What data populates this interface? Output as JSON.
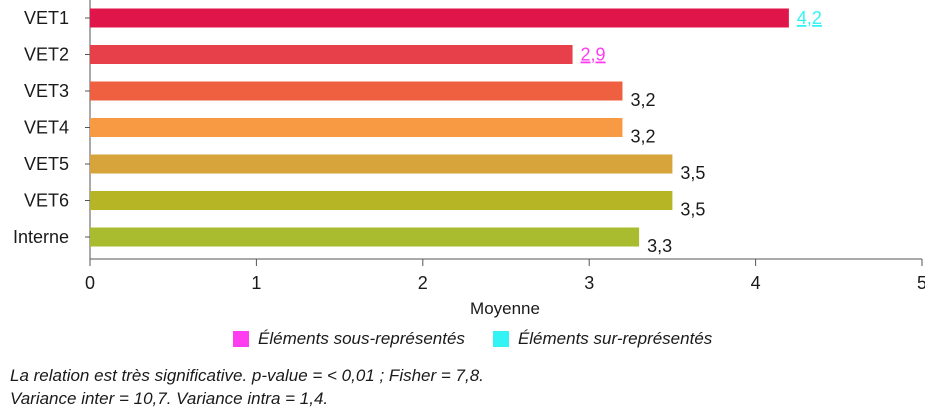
{
  "chart_data": {
    "type": "bar",
    "orientation": "horizontal",
    "categories": [
      "VET1",
      "VET2",
      "VET3",
      "VET4",
      "VET5",
      "VET6",
      "Interne"
    ],
    "values": [
      4.2,
      2.9,
      3.2,
      3.2,
      3.5,
      3.5,
      3.3
    ],
    "value_labels": [
      "4,2",
      "2,9",
      "3,2",
      "3,2",
      "3,5",
      "3,5",
      "3,3"
    ],
    "bar_colors": [
      "#e0154a",
      "#e8404a",
      "#ef6040",
      "#f79a43",
      "#d7a43b",
      "#b5b525",
      "#a9bb2e"
    ],
    "label_status": [
      "over",
      "under",
      "normal",
      "normal",
      "normal",
      "normal",
      "normal"
    ],
    "xlabel": "Moyenne",
    "xlim": [
      0,
      5
    ],
    "xticks": [
      "0",
      "1",
      "2",
      "3",
      "4",
      "5"
    ],
    "grid": false
  },
  "legend": {
    "under": {
      "label": "Éléments sous-représentés",
      "color": "#ff3cf0"
    },
    "over": {
      "label": "Éléments sur-représentés",
      "color": "#33f3f5"
    }
  },
  "notes": {
    "line1": "La relation est très significative. p-value = < 0,01 ; Fisher = 7,8.",
    "line2": "Variance inter = 10,7. Variance intra = 1,4."
  }
}
